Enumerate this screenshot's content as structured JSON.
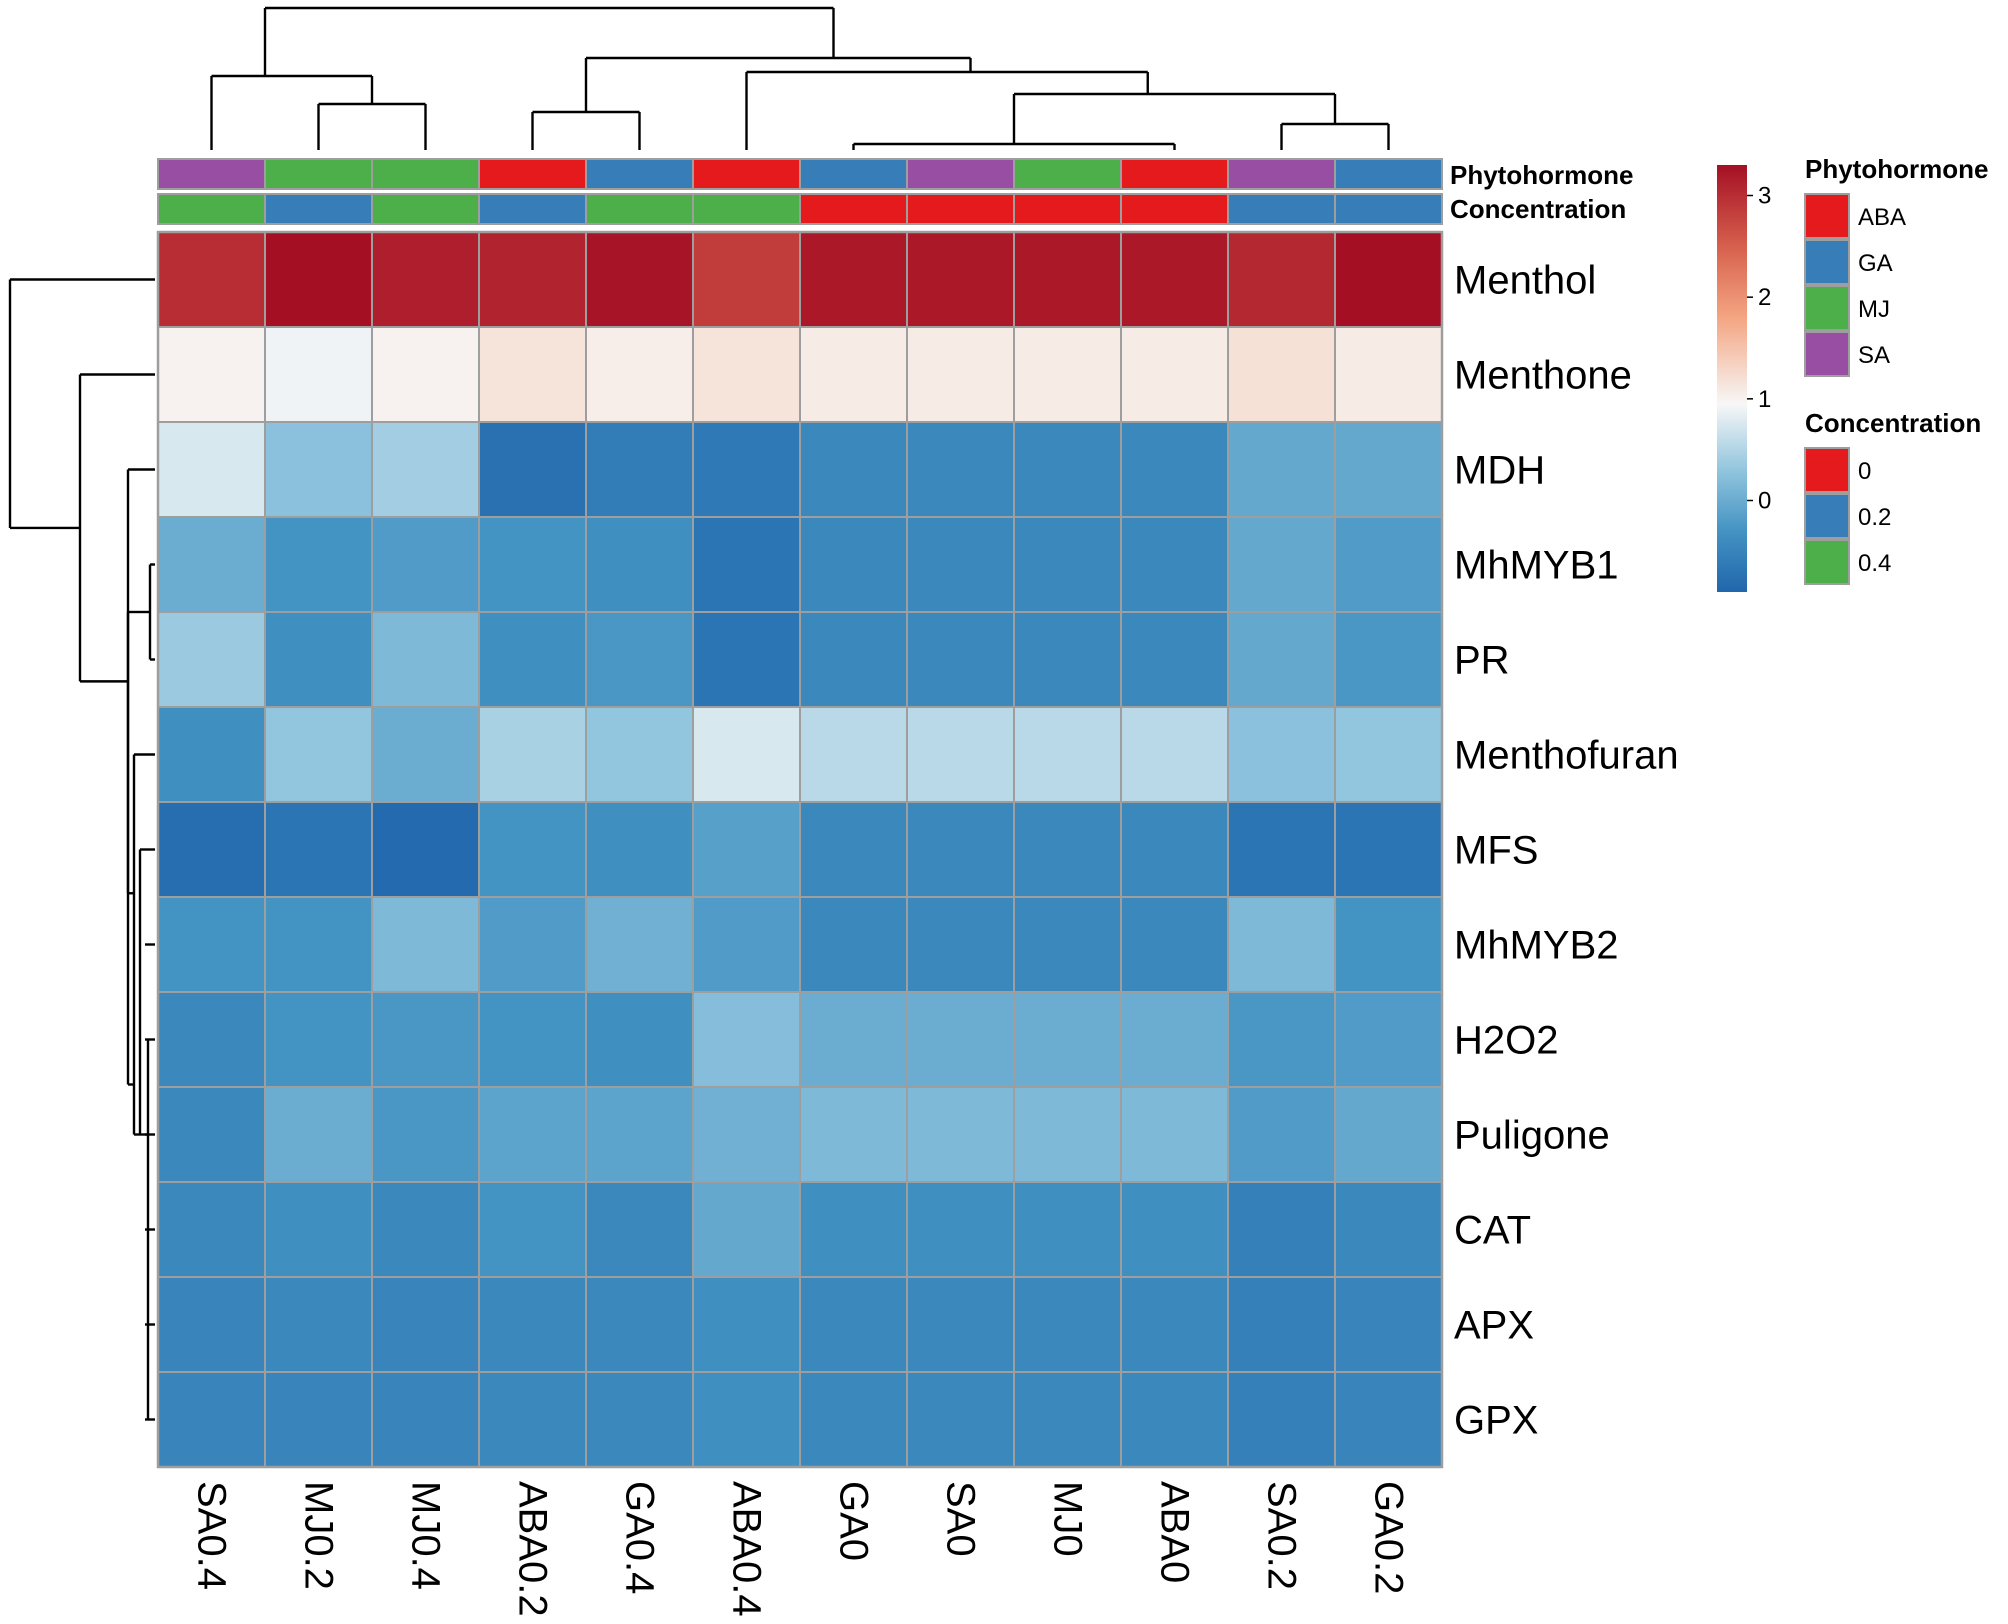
{
  "chart_data": {
    "type": "heatmap",
    "title": "",
    "columns": [
      "SA0.4",
      "MJ0.2",
      "MJ0.4",
      "ABA0.2",
      "GA0.4",
      "ABA0.4",
      "GA0",
      "SA0",
      "MJ0",
      "ABA0",
      "SA0.2",
      "GA0.2"
    ],
    "rows": [
      "Menthol",
      "Menthone",
      "MDH",
      "MhMYB1",
      "PR",
      "Menthofuran",
      "MFS",
      "MhMYB2",
      "H2O2",
      "Puligone",
      "CAT",
      "APX",
      "GPX"
    ],
    "values": [
      [
        3.0,
        3.3,
        3.15,
        3.1,
        3.25,
        2.85,
        3.2,
        3.2,
        3.2,
        3.2,
        3.05,
        3.3
      ],
      [
        1.0,
        0.9,
        1.0,
        1.15,
        1.05,
        1.15,
        1.07,
        1.07,
        1.07,
        1.07,
        1.18,
        1.07
      ],
      [
        0.75,
        0.25,
        0.4,
        -0.75,
        -0.6,
        -0.65,
        -0.45,
        -0.45,
        -0.45,
        -0.45,
        -0.05,
        -0.05
      ],
      [
        0.0,
        -0.3,
        -0.2,
        -0.3,
        -0.35,
        -0.7,
        -0.45,
        -0.45,
        -0.45,
        -0.45,
        -0.05,
        -0.2
      ],
      [
        0.35,
        -0.35,
        0.15,
        -0.35,
        -0.25,
        -0.7,
        -0.45,
        -0.45,
        -0.45,
        -0.45,
        -0.05,
        -0.25
      ],
      [
        -0.35,
        0.3,
        0.0,
        0.45,
        0.3,
        0.75,
        0.55,
        0.55,
        0.55,
        0.55,
        0.25,
        0.3
      ],
      [
        -0.8,
        -0.7,
        -0.85,
        -0.3,
        -0.35,
        -0.15,
        -0.45,
        -0.45,
        -0.45,
        -0.45,
        -0.7,
        -0.7
      ],
      [
        -0.3,
        -0.3,
        0.15,
        -0.2,
        0.05,
        -0.2,
        -0.45,
        -0.45,
        -0.45,
        -0.45,
        0.15,
        -0.3
      ],
      [
        -0.45,
        -0.3,
        -0.25,
        -0.3,
        -0.35,
        0.2,
        0.0,
        0.0,
        0.0,
        0.0,
        -0.25,
        -0.2
      ],
      [
        -0.45,
        0.0,
        -0.25,
        -0.1,
        -0.1,
        0.05,
        0.15,
        0.15,
        0.15,
        0.15,
        -0.2,
        -0.05
      ],
      [
        -0.45,
        -0.35,
        -0.45,
        -0.3,
        -0.45,
        -0.05,
        -0.35,
        -0.35,
        -0.35,
        -0.35,
        -0.55,
        -0.45
      ],
      [
        -0.5,
        -0.45,
        -0.5,
        -0.45,
        -0.45,
        -0.35,
        -0.45,
        -0.45,
        -0.45,
        -0.45,
        -0.55,
        -0.5
      ],
      [
        -0.5,
        -0.5,
        -0.5,
        -0.45,
        -0.45,
        -0.35,
        -0.45,
        -0.45,
        -0.45,
        -0.45,
        -0.55,
        -0.5
      ]
    ],
    "color_scale": {
      "min": -0.9,
      "max": 3.3,
      "stops": [
        {
          "value": -0.9,
          "color": "#2166ac"
        },
        {
          "value": -0.3,
          "color": "#4393c3"
        },
        {
          "value": 0.3,
          "color": "#92c5de"
        },
        {
          "value": 0.95,
          "color": "#f7f7f7"
        },
        {
          "value": 1.8,
          "color": "#f4a582"
        },
        {
          "value": 2.5,
          "color": "#d6604d"
        },
        {
          "value": 3.3,
          "color": "#a50f24"
        }
      ],
      "ticks": [
        "3",
        "2",
        "1",
        "0"
      ],
      "tick_values": [
        3,
        2,
        1,
        0
      ]
    },
    "annotations": {
      "phytohormone": {
        "title": "Phytohormone",
        "values": [
          "SA",
          "MJ",
          "MJ",
          "ABA",
          "GA",
          "ABA",
          "GA",
          "SA",
          "MJ",
          "ABA",
          "SA",
          "GA"
        ]
      },
      "concentration": {
        "title": "Concentration",
        "values": [
          "0.4",
          "0.2",
          "0.4",
          "0.2",
          "0.4",
          "0.4",
          "0",
          "0",
          "0",
          "0",
          "0.2",
          "0.2"
        ]
      }
    },
    "legends": {
      "phytohormone": {
        "title": "Phytohormone",
        "items": [
          {
            "label": "ABA",
            "color": "#e41a1c"
          },
          {
            "label": "GA",
            "color": "#377eb8"
          },
          {
            "label": "MJ",
            "color": "#4daf4a"
          },
          {
            "label": "SA",
            "color": "#984ea3"
          }
        ]
      },
      "concentration": {
        "title": "Concentration",
        "items": [
          {
            "label": "0",
            "color": "#e41a1c"
          },
          {
            "label": "0.2",
            "color": "#377eb8"
          },
          {
            "label": "0.4",
            "color": "#4daf4a"
          }
        ]
      }
    }
  }
}
